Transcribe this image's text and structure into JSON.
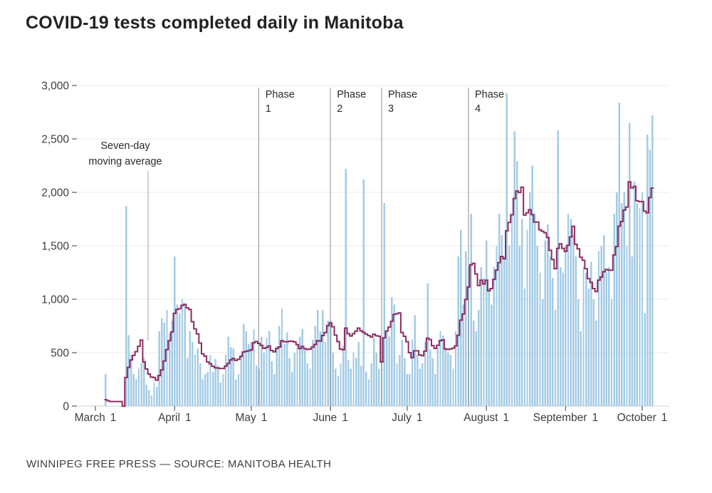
{
  "page": {
    "title": "COVID-19 tests completed daily in Manitoba",
    "source_line": "WINNIPEG FREE PRESS — SOURCE: MANITOBA HEALTH"
  },
  "chart_data": {
    "type": "bar",
    "title": "COVID-19 tests completed daily in Manitoba",
    "xlabel": "",
    "ylabel": "",
    "ylim": [
      0,
      3000
    ],
    "grid": "horizontal",
    "x_range": "March 1 to October 5",
    "y_ticks": [
      {
        "value": 0,
        "label": "0"
      },
      {
        "value": 500,
        "label": "500"
      },
      {
        "value": 1000,
        "label": "1,000"
      },
      {
        "value": 1500,
        "label": "1,500"
      },
      {
        "value": 2000,
        "label": "2,000"
      },
      {
        "value": 2500,
        "label": "2,500"
      },
      {
        "value": 3000,
        "label": "3,000"
      }
    ],
    "x_ticks": [
      {
        "month": "March",
        "day": "1",
        "day_index": 0
      },
      {
        "month": "April",
        "day": "1",
        "day_index": 31
      },
      {
        "month": "May",
        "day": "1",
        "day_index": 61
      },
      {
        "month": "June",
        "day": "1",
        "day_index": 92
      },
      {
        "month": "July",
        "day": "1",
        "day_index": 122
      },
      {
        "month": "August",
        "day": "1",
        "day_index": 153
      },
      {
        "month": "September",
        "day": "1",
        "day_index": 184
      },
      {
        "month": "October",
        "day": "1",
        "day_index": 214
      }
    ],
    "series": [
      {
        "name": "Daily tests completed",
        "type": "bar",
        "color": "#a3cbe4",
        "values": [
          0,
          0,
          0,
          0,
          300,
          0,
          0,
          0,
          0,
          0,
          0,
          0,
          1875,
          665,
          480,
          300,
          250,
          350,
          400,
          450,
          200,
          150,
          100,
          220,
          180,
          700,
          820,
          780,
          900,
          680,
          800,
          1400,
          950,
          870,
          1000,
          960,
          450,
          700,
          600,
          480,
          540,
          400,
          250,
          300,
          320,
          480,
          320,
          440,
          380,
          220,
          300,
          480,
          650,
          550,
          540,
          250,
          300,
          480,
          770,
          700,
          580,
          600,
          720,
          380,
          350,
          650,
          500,
          640,
          700,
          420,
          300,
          560,
          750,
          910,
          580,
          690,
          450,
          320,
          500,
          580,
          650,
          720,
          540,
          400,
          350,
          620,
          750,
          900,
          700,
          900,
          600,
          800,
          800,
          500,
          350,
          280,
          400,
          560,
          2220,
          430,
          350,
          500,
          450,
          600,
          380,
          2120,
          320,
          250,
          400,
          640,
          500,
          350,
          430,
          1900,
          700,
          650,
          1020,
          950,
          400,
          480,
          620,
          450,
          300,
          300,
          620,
          850,
          480,
          350,
          400,
          600,
          1150,
          530,
          450,
          300,
          550,
          700,
          660,
          550,
          500,
          480,
          350,
          700,
          1400,
          1650,
          950,
          1450,
          1300,
          1800,
          800,
          700,
          900,
          1300,
          1200,
          1550,
          1100,
          950,
          1300,
          1500,
          1800,
          1600,
          1400,
          2930,
          1500,
          1800,
          2570,
          2290,
          1500,
          1750,
          1100,
          1650,
          2000,
          2250,
          1800,
          1500,
          1250,
          1000,
          1550,
          1700,
          1400,
          1200,
          900,
          2580,
          1300,
          1250,
          1500,
          1800,
          1750,
          1600,
          1400,
          1000,
          700,
          1300,
          1250,
          1100,
          1350,
          1000,
          800,
          1450,
          1500,
          1600,
          1250,
          1300,
          1000,
          1800,
          2000,
          2840,
          1900,
          2000,
          1500,
          2650,
          1400,
          2100,
          1900,
          1850,
          2000,
          870,
          2540,
          2400,
          2720
        ]
      },
      {
        "name": "Seven-day moving average",
        "type": "step-line",
        "color": "#8e2c60",
        "derivation": "trailing 7-day mean of the daily values, drawn from day index 4 onward"
      }
    ],
    "phase_markers": [
      {
        "line1": "Phase",
        "line2": "1",
        "day_index": 64
      },
      {
        "line1": "Phase",
        "line2": "2",
        "day_index": 92
      },
      {
        "line1": "Phase",
        "line2": "3",
        "day_index": 112
      },
      {
        "line1": "Phase",
        "line2": "4",
        "day_index": 146
      }
    ],
    "annotation": {
      "line1": "Seven-day",
      "line2": "moving average"
    }
  },
  "colors": {
    "bar": "#a3cbe4",
    "moving_average": "#8e2c60",
    "gridline": "#e8e8e8",
    "axis_line": "#cfcfcf",
    "tick": "#666666",
    "axis_text": "#3d3d3d",
    "phase_line": "#8f8f8f",
    "phase_text": "#2a2a2a",
    "annotation_line": "#a0a0a0"
  }
}
